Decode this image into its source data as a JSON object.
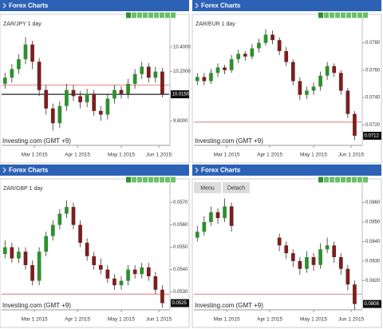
{
  "chart_data": [
    {
      "type": "candlestick",
      "header": "Forex Charts",
      "title": "ZAR/JPY 1 day",
      "source": "Investing.com (GMT +9)",
      "up_color": "#2f8f2f",
      "down_color": "#7a1f1f",
      "ref_line": 10.09,
      "price_line": true,
      "last_price": {
        "value": 10.015,
        "label": "10.0150"
      },
      "ylim": [
        9.6,
        10.6
      ],
      "yticks": [
        {
          "value": 9.8,
          "label": "9.8000"
        },
        {
          "value": 10.2,
          "label": "10.2000"
        },
        {
          "value": 10.4,
          "label": "10.4000"
        }
      ],
      "xlim": [
        0,
        24.5
      ],
      "xticks": [
        {
          "value": 4.8,
          "label": "Mar 1 2015"
        },
        {
          "value": 11.1,
          "label": "Apr 1 2015"
        },
        {
          "value": 17.5,
          "label": "May 1 2015"
        },
        {
          "value": 23.0,
          "label": "Jun 1 2015"
        }
      ],
      "candles": [
        [
          10.1,
          10.19,
          10.06,
          10.15
        ],
        [
          10.15,
          10.26,
          10.11,
          10.22
        ],
        [
          10.22,
          10.34,
          10.18,
          10.3
        ],
        [
          10.3,
          10.48,
          10.26,
          10.42
        ],
        [
          10.42,
          10.45,
          10.22,
          10.28
        ],
        [
          10.28,
          10.31,
          10.0,
          10.05
        ],
        [
          10.05,
          10.09,
          9.85,
          9.9
        ],
        [
          9.9,
          9.94,
          9.72,
          9.78
        ],
        [
          9.78,
          9.96,
          9.74,
          9.92
        ],
        [
          9.92,
          10.1,
          9.88,
          10.05
        ],
        [
          10.05,
          10.09,
          9.96,
          10.0
        ],
        [
          10.0,
          10.04,
          9.9,
          9.95
        ],
        [
          9.95,
          10.06,
          9.91,
          10.02
        ],
        [
          10.02,
          10.05,
          9.84,
          9.88
        ],
        [
          9.88,
          9.92,
          9.8,
          9.85
        ],
        [
          9.85,
          10.02,
          9.81,
          9.98
        ],
        [
          9.98,
          10.09,
          9.94,
          10.05
        ],
        [
          10.05,
          10.08,
          9.98,
          10.02
        ],
        [
          10.02,
          10.14,
          9.98,
          10.1
        ],
        [
          10.1,
          10.22,
          10.06,
          10.18
        ],
        [
          10.18,
          10.28,
          10.14,
          10.24
        ],
        [
          10.24,
          10.27,
          10.11,
          10.15
        ],
        [
          10.15,
          10.24,
          10.11,
          10.2
        ],
        [
          10.2,
          10.23,
          9.99,
          10.015
        ]
      ]
    },
    {
      "type": "candlestick",
      "header": "Forex Charts",
      "title": "ZAR/EUR 1 day",
      "source": "Investing.com (GMT +9)",
      "up_color": "#2f8f2f",
      "down_color": "#7a1f1f",
      "ref_line": 0.0722,
      "price_line": false,
      "last_price": {
        "value": 0.0712,
        "label": "0.0712"
      },
      "ylim": [
        0.0705,
        0.0795
      ],
      "yticks": [
        {
          "value": 0.072,
          "label": "0.0720"
        },
        {
          "value": 0.074,
          "label": "0.0740"
        },
        {
          "value": 0.076,
          "label": "0.0760"
        },
        {
          "value": 0.078,
          "label": "0.0780"
        }
      ],
      "xlim": [
        0,
        24.5
      ],
      "xticks": [
        {
          "value": 4.8,
          "label": "Mar 1 2015"
        },
        {
          "value": 11.1,
          "label": "Apr 1 2015"
        },
        {
          "value": 17.5,
          "label": "May 1 2015"
        },
        {
          "value": 23.0,
          "label": "Jun 1 2015"
        }
      ],
      "candles": [
        [
          0.0752,
          0.0758,
          0.0749,
          0.0755
        ],
        [
          0.0755,
          0.0758,
          0.0749,
          0.0752
        ],
        [
          0.0752,
          0.0761,
          0.075,
          0.0758
        ],
        [
          0.0758,
          0.0765,
          0.0755,
          0.0762
        ],
        [
          0.0762,
          0.0764,
          0.0757,
          0.076
        ],
        [
          0.076,
          0.0771,
          0.0758,
          0.0768
        ],
        [
          0.0768,
          0.0775,
          0.0765,
          0.0772
        ],
        [
          0.0772,
          0.0774,
          0.0767,
          0.077
        ],
        [
          0.077,
          0.0779,
          0.0768,
          0.0776
        ],
        [
          0.0776,
          0.0783,
          0.0773,
          0.078
        ],
        [
          0.078,
          0.079,
          0.0778,
          0.0786
        ],
        [
          0.0786,
          0.0789,
          0.0779,
          0.0782
        ],
        [
          0.0782,
          0.0784,
          0.0771,
          0.0774
        ],
        [
          0.0774,
          0.0777,
          0.0763,
          0.0766
        ],
        [
          0.0766,
          0.0768,
          0.0749,
          0.0752
        ],
        [
          0.0752,
          0.0755,
          0.0738,
          0.0742
        ],
        [
          0.0742,
          0.0748,
          0.0739,
          0.0745
        ],
        [
          0.0745,
          0.0751,
          0.0742,
          0.0748
        ],
        [
          0.0748,
          0.0759,
          0.0745,
          0.0756
        ],
        [
          0.0756,
          0.0766,
          0.0753,
          0.0763
        ],
        [
          0.0763,
          0.0765,
          0.0755,
          0.0758
        ],
        [
          0.0758,
          0.076,
          0.0742,
          0.0745
        ],
        [
          0.0745,
          0.0747,
          0.0725,
          0.0728
        ],
        [
          0.0728,
          0.073,
          0.0709,
          0.0712
        ]
      ]
    },
    {
      "type": "candlestick",
      "header": "Forex Charts",
      "title": "ZAR/GBP 1 day",
      "source": "Investing.com (GMT +9)",
      "up_color": "#2f8f2f",
      "down_color": "#7a1f1f",
      "ref_line": 0.0529,
      "price_line": false,
      "last_price": {
        "value": 0.0525,
        "label": "0.0525"
      },
      "ylim": [
        0.0522,
        0.0577
      ],
      "yticks": [
        {
          "value": 0.053,
          "label": "0.0530"
        },
        {
          "value": 0.054,
          "label": "0.0540"
        },
        {
          "value": 0.055,
          "label": "0.0550"
        },
        {
          "value": 0.056,
          "label": "0.0560"
        },
        {
          "value": 0.057,
          "label": "0.0570"
        }
      ],
      "xlim": [
        0,
        24.5
      ],
      "xticks": [
        {
          "value": 4.8,
          "label": "Mar 1 2015"
        },
        {
          "value": 11.1,
          "label": "Apr 1 2015"
        },
        {
          "value": 17.5,
          "label": "May 1 2015"
        },
        {
          "value": 23.0,
          "label": "Jun 1 2015"
        }
      ],
      "candles": [
        [
          0.0547,
          0.0553,
          0.0545,
          0.055
        ],
        [
          0.055,
          0.0552,
          0.0543,
          0.0545
        ],
        [
          0.0545,
          0.055,
          0.0543,
          0.0548
        ],
        [
          0.0548,
          0.055,
          0.054,
          0.0542
        ],
        [
          0.0542,
          0.0544,
          0.0533,
          0.0535
        ],
        [
          0.0535,
          0.055,
          0.0533,
          0.0548
        ],
        [
          0.0548,
          0.0557,
          0.0546,
          0.0555
        ],
        [
          0.0555,
          0.0562,
          0.0553,
          0.056
        ],
        [
          0.056,
          0.0567,
          0.0558,
          0.0565
        ],
        [
          0.0565,
          0.0571,
          0.0563,
          0.0568
        ],
        [
          0.0568,
          0.057,
          0.0558,
          0.056
        ],
        [
          0.056,
          0.0562,
          0.055,
          0.0552
        ],
        [
          0.0552,
          0.0554,
          0.0544,
          0.0546
        ],
        [
          0.0546,
          0.0548,
          0.054,
          0.0542
        ],
        [
          0.0542,
          0.0545,
          0.0538,
          0.054
        ],
        [
          0.054,
          0.0542,
          0.0534,
          0.0536
        ],
        [
          0.0536,
          0.0538,
          0.0531,
          0.0533
        ],
        [
          0.0533,
          0.0537,
          0.0531,
          0.0535
        ],
        [
          0.0535,
          0.0542,
          0.0533,
          0.054
        ],
        [
          0.054,
          0.0542,
          0.0536,
          0.0538
        ],
        [
          0.0538,
          0.0543,
          0.0536,
          0.0541
        ],
        [
          0.0541,
          0.0543,
          0.0535,
          0.0537
        ],
        [
          0.0537,
          0.0539,
          0.0529,
          0.0531
        ],
        [
          0.0531,
          0.0533,
          0.0523,
          0.0525
        ]
      ]
    },
    {
      "type": "candlestick",
      "header": "Forex Charts",
      "buttons": [
        "Menu",
        "Detach"
      ],
      "source": "Investing.com (GMT +9)",
      "up_color": "#2f8f2f",
      "down_color": "#7a1f1f",
      "ref_line": 0.0813,
      "price_line": false,
      "last_price": {
        "value": 0.0808,
        "label": "0.0808"
      },
      "ylim": [
        0.0805,
        0.0868
      ],
      "yticks": [
        {
          "value": 0.082,
          "label": "0.0820"
        },
        {
          "value": 0.083,
          "label": "0.0830"
        },
        {
          "value": 0.084,
          "label": "0.0840"
        },
        {
          "value": 0.085,
          "label": "0.0850"
        },
        {
          "value": 0.086,
          "label": "0.0860"
        }
      ],
      "xlim": [
        0,
        24.5
      ],
      "xticks": [
        {
          "value": 4.8,
          "label": "Mar 1 2015"
        },
        {
          "value": 11.1,
          "label": "Apr 1 2015"
        },
        {
          "value": 17.5,
          "label": "May 1 2015"
        },
        {
          "value": 23.0,
          "label": "Jun 1 2015"
        }
      ],
      "candles": [
        [
          0.0842,
          0.0848,
          0.084,
          0.0845
        ],
        [
          0.0845,
          0.0853,
          0.0843,
          0.085
        ],
        [
          0.085,
          0.0858,
          0.0848,
          0.0855
        ],
        [
          0.0855,
          0.0857,
          0.0849,
          0.0852
        ],
        [
          0.0852,
          0.0862,
          0.085,
          0.0858
        ],
        [
          0.0858,
          0.086,
          0.0845,
          0.0848
        ],
        null,
        null,
        null,
        null,
        null,
        null,
        [
          0.0842,
          0.0844,
          0.0835,
          0.0838
        ],
        [
          0.0838,
          0.084,
          0.0831,
          0.0834
        ],
        [
          0.0834,
          0.0836,
          0.0827,
          0.083
        ],
        [
          0.083,
          0.0832,
          0.0823,
          0.0826
        ],
        [
          0.0826,
          0.0835,
          0.0824,
          0.0832
        ],
        [
          0.0832,
          0.0834,
          0.0825,
          0.0828
        ],
        [
          0.0828,
          0.0839,
          0.0826,
          0.0836
        ],
        [
          0.0836,
          0.0842,
          0.0834,
          0.0838
        ],
        [
          0.0838,
          0.084,
          0.0829,
          0.0832
        ],
        [
          0.0832,
          0.0834,
          0.0823,
          0.0826
        ],
        [
          0.0826,
          0.0828,
          0.0815,
          0.0818
        ],
        [
          0.0818,
          0.082,
          0.0805,
          0.0808
        ]
      ]
    }
  ]
}
